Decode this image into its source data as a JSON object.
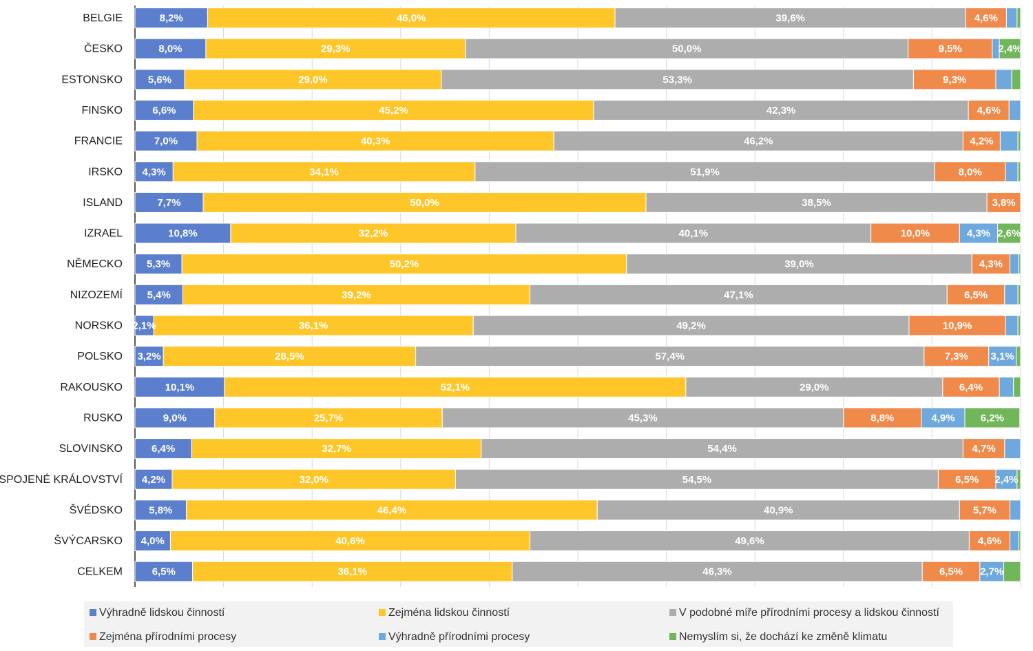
{
  "chart_data": {
    "type": "bar",
    "orientation": "horizontal",
    "stacked": "100%",
    "title": "",
    "xlabel": "",
    "ylabel": "",
    "xlim": [
      0,
      100
    ],
    "grid": true,
    "legend_position": "bottom",
    "categories": [
      "BELGIE",
      "ČESKO",
      "ESTONSKO",
      "FINSKO",
      "FRANCIE",
      "IRSKO",
      "ISLAND",
      "IZRAEL",
      "NĚMECKO",
      "NIZOZEMÍ",
      "NORSKO",
      "POLSKO",
      "RAKOUSKO",
      "RUSKO",
      "SLOVINSKO",
      "SPOJENÉ KRÁLOVSTVÍ",
      "ŠVÉDSKO",
      "ŠVÝCARSKO",
      "CELKEM"
    ],
    "series": [
      {
        "name": "Výhradně lidskou činností",
        "color": "#5B7FCC",
        "values": [
          8.2,
          8.0,
          5.6,
          6.6,
          7.0,
          4.3,
          7.7,
          10.8,
          5.3,
          5.4,
          2.1,
          3.2,
          10.1,
          9.0,
          6.4,
          4.2,
          5.8,
          4.0,
          6.5
        ],
        "labels": [
          "8,2%",
          "8,0%",
          "5,6%",
          "6,6%",
          "7,0%",
          "4,3%",
          "7,7%",
          "10,8%",
          "5,3%",
          "5,4%",
          "2,1%",
          "3,2%",
          "10,1%",
          "9,0%",
          "6,4%",
          "4,2%",
          "5,8%",
          "4,0%",
          "6,5%"
        ]
      },
      {
        "name": "Zejména lidskou činností",
        "color": "#FFC629",
        "values": [
          46.0,
          29.3,
          29.0,
          45.2,
          40.3,
          34.1,
          50.0,
          32.2,
          50.2,
          39.2,
          36.1,
          28.5,
          52.1,
          25.7,
          32.7,
          32.0,
          46.4,
          40.6,
          36.1
        ],
        "labels": [
          "46,0%",
          "29,3%",
          "29,0%",
          "45,2%",
          "40,3%",
          "34,1%",
          "50,0%",
          "32,2%",
          "50,2%",
          "39,2%",
          "36,1%",
          "28,5%",
          "52,1%",
          "25,7%",
          "32,7%",
          "32,0%",
          "46,4%",
          "40,6%",
          "36,1%"
        ]
      },
      {
        "name": "V podobné míře přírodními procesy a lidskou činností",
        "color": "#ADADAD",
        "values": [
          39.6,
          50.0,
          53.3,
          42.3,
          46.2,
          51.9,
          38.5,
          40.1,
          39.0,
          47.1,
          49.2,
          57.4,
          29.0,
          45.3,
          54.4,
          54.5,
          40.9,
          49.6,
          46.3
        ],
        "labels": [
          "39,6%",
          "50,0%",
          "53,3%",
          "42,3%",
          "46,2%",
          "51,9%",
          "38,5%",
          "40,1%",
          "39,0%",
          "47,1%",
          "49,2%",
          "57,4%",
          "29,0%",
          "45,3%",
          "54,4%",
          "54,5%",
          "40,9%",
          "49,6%",
          "46,3%"
        ]
      },
      {
        "name": "Zejména přírodními procesy",
        "color": "#F08A4B",
        "values": [
          4.6,
          9.5,
          9.3,
          4.6,
          4.2,
          8.0,
          3.8,
          10.0,
          4.3,
          6.5,
          10.9,
          7.3,
          6.4,
          8.8,
          4.7,
          6.5,
          5.7,
          4.6,
          6.5
        ],
        "labels": [
          "4,6%",
          "9,5%",
          "9,3%",
          "4,6%",
          "4,2%",
          "8,0%",
          "3,8%",
          "10,0%",
          "4,3%",
          "6,5%",
          "10,9%",
          "7,3%",
          "6,4%",
          "8,8%",
          "4,7%",
          "6,5%",
          "5,7%",
          "4,6%",
          "6,5%"
        ]
      },
      {
        "name": "Výhradně přírodními procesy",
        "color": "#6FA8DC",
        "values": [
          1.2,
          0.8,
          1.8,
          1.3,
          2.0,
          1.4,
          0.0,
          4.3,
          1.0,
          1.5,
          1.4,
          3.1,
          1.6,
          4.9,
          1.8,
          2.4,
          1.2,
          1.0,
          2.7
        ],
        "labels": [
          "",
          "",
          "",
          "",
          "",
          "",
          "",
          "4,3%",
          "",
          "",
          "",
          "3,1%",
          "",
          "4,9%",
          "",
          "2,4%",
          "",
          "",
          "2,7%"
        ]
      },
      {
        "name": "Nemyslím si, že dochází ke změně klimatu",
        "color": "#71B65A",
        "values": [
          0.4,
          2.4,
          1.0,
          0.0,
          0.3,
          0.3,
          0.0,
          2.6,
          0.2,
          0.3,
          0.3,
          0.5,
          0.8,
          6.2,
          0.0,
          0.4,
          0.0,
          0.2,
          1.9
        ],
        "labels": [
          "",
          "2,4%",
          "",
          "",
          "",
          "",
          "",
          "2,6%",
          "",
          "",
          "",
          "",
          "",
          "6,2%",
          "",
          "",
          "",
          "",
          ""
        ]
      }
    ]
  }
}
